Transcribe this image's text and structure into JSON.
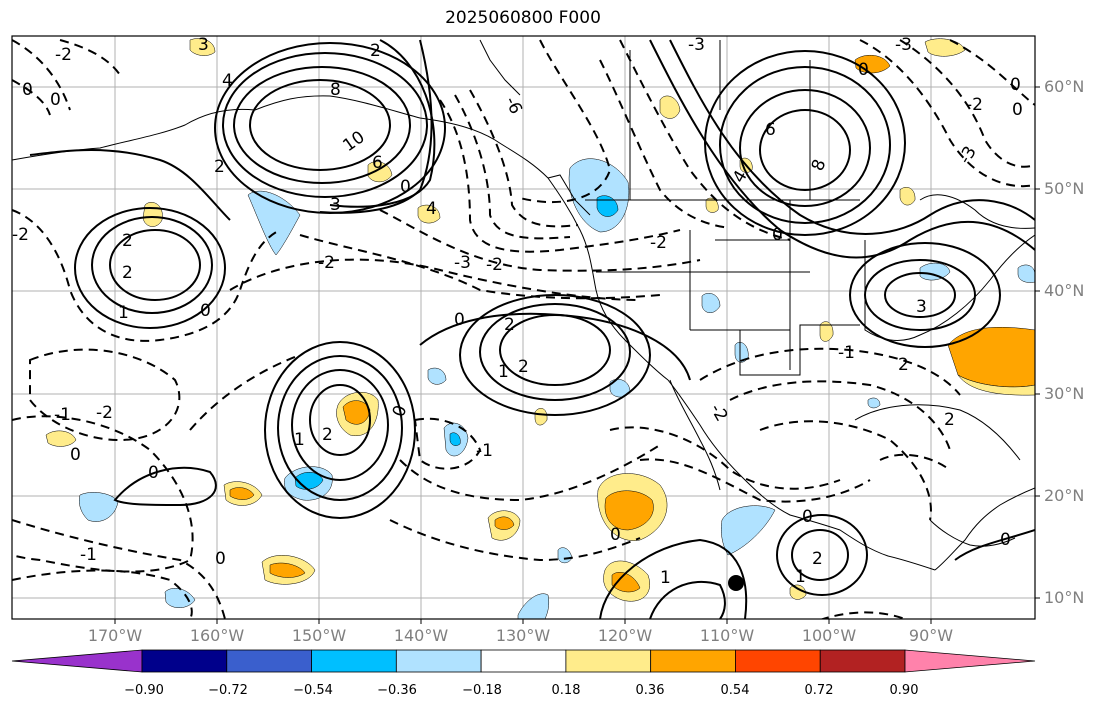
{
  "title": "2025060800 F000",
  "lat_labels": [
    "60°N",
    "50°N",
    "40°N",
    "30°N",
    "20°N",
    "10°N"
  ],
  "lon_labels": [
    "170°W",
    "160°W",
    "150°W",
    "140°W",
    "130°W",
    "120°W",
    "110°W",
    "100°W",
    "90°W"
  ],
  "colorbar": {
    "ticks": [
      "−0.90",
      "−0.72",
      "−0.54",
      "−0.36",
      "−0.18",
      "0.18",
      "0.36",
      "0.54",
      "0.72",
      "0.90"
    ],
    "colors": [
      "#9932cc",
      "#00008b",
      "#3a5fcd",
      "#00bfff",
      "#b0e2ff",
      "#ffffff",
      "#ffec8b",
      "#ffa500",
      "#ff4500",
      "#b22222",
      "#ff82ab"
    ]
  },
  "contour_labels": {
    "c3": "3",
    "c6": "6",
    "c10": "10",
    "c8": "8",
    "c4": "4",
    "c2": "2",
    "c1": "1",
    "c0": "0",
    "cm1": "-1",
    "cm2": "-2",
    "cm3": "-3",
    "cm6": "-6"
  }
}
